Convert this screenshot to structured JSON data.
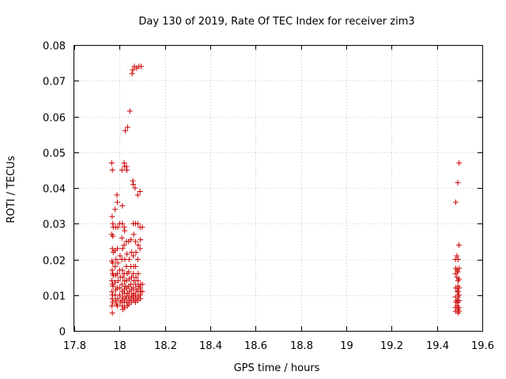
{
  "chart_data": {
    "type": "scatter",
    "title": "Day 130 of 2019, Rate Of TEC Index for receiver zim3",
    "xlabel": "GPS time / hours",
    "ylabel": "ROTI / TECUs",
    "xlim": [
      17.8,
      19.6
    ],
    "ylim": [
      0,
      0.08
    ],
    "xticks": [
      "17.8",
      "18",
      "18.2",
      "18.4",
      "18.6",
      "18.8",
      "19",
      "19.2",
      "19.4",
      "19.6"
    ],
    "yticks": [
      "0",
      "0.01",
      "0.02",
      "0.03",
      "0.04",
      "0.05",
      "0.06",
      "0.07",
      "0.08"
    ],
    "grid": true,
    "marker": "+",
    "series": [
      {
        "name": "ROTI",
        "color": "#cc0000",
        "points": [
          [
            17.965,
            0.047
          ],
          [
            17.968,
            0.045
          ],
          [
            17.967,
            0.032
          ],
          [
            17.97,
            0.03
          ],
          [
            17.972,
            0.029
          ],
          [
            17.965,
            0.027
          ],
          [
            17.97,
            0.0265
          ],
          [
            17.968,
            0.023
          ],
          [
            17.972,
            0.022
          ],
          [
            17.966,
            0.0195
          ],
          [
            17.97,
            0.019
          ],
          [
            17.967,
            0.017
          ],
          [
            17.969,
            0.016
          ],
          [
            17.972,
            0.0155
          ],
          [
            17.966,
            0.014
          ],
          [
            17.968,
            0.013
          ],
          [
            17.971,
            0.0125
          ],
          [
            17.966,
            0.011
          ],
          [
            17.969,
            0.01
          ],
          [
            17.967,
            0.009
          ],
          [
            17.97,
            0.008
          ],
          [
            17.966,
            0.007
          ],
          [
            17.968,
            0.005
          ],
          [
            17.98,
            0.034
          ],
          [
            17.982,
            0.029
          ],
          [
            17.98,
            0.0225
          ],
          [
            17.984,
            0.02
          ],
          [
            17.98,
            0.018
          ],
          [
            17.982,
            0.0155
          ],
          [
            17.98,
            0.0135
          ],
          [
            17.983,
            0.0115
          ],
          [
            17.98,
            0.01
          ],
          [
            17.982,
            0.0085
          ],
          [
            17.986,
            0.0075
          ],
          [
            17.988,
            0.038
          ],
          [
            17.99,
            0.036
          ],
          [
            17.992,
            0.029
          ],
          [
            17.99,
            0.023
          ],
          [
            17.992,
            0.019
          ],
          [
            17.99,
            0.016
          ],
          [
            17.993,
            0.014
          ],
          [
            17.99,
            0.012
          ],
          [
            17.992,
            0.009
          ],
          [
            17.99,
            0.007
          ],
          [
            18.0,
            0.03
          ],
          [
            18.002,
            0.021
          ],
          [
            18.0,
            0.017
          ],
          [
            18.003,
            0.015
          ],
          [
            18.001,
            0.012
          ],
          [
            18.0,
            0.01
          ],
          [
            18.003,
            0.008
          ],
          [
            18.01,
            0.045
          ],
          [
            18.012,
            0.035
          ],
          [
            18.012,
            0.03
          ],
          [
            18.01,
            0.026
          ],
          [
            18.013,
            0.023
          ],
          [
            18.01,
            0.02
          ],
          [
            18.012,
            0.017
          ],
          [
            18.014,
            0.015
          ],
          [
            18.01,
            0.013
          ],
          [
            18.012,
            0.011
          ],
          [
            18.014,
            0.0095
          ],
          [
            18.01,
            0.0085
          ],
          [
            18.012,
            0.007
          ],
          [
            18.014,
            0.006
          ],
          [
            18.02,
            0.047
          ],
          [
            18.022,
            0.046
          ],
          [
            18.02,
            0.029
          ],
          [
            18.022,
            0.028
          ],
          [
            18.02,
            0.024
          ],
          [
            18.023,
            0.02
          ],
          [
            18.02,
            0.016
          ],
          [
            18.022,
            0.014
          ],
          [
            18.024,
            0.0125
          ],
          [
            18.02,
            0.0115
          ],
          [
            18.022,
            0.0105
          ],
          [
            18.024,
            0.009
          ],
          [
            18.02,
            0.008
          ],
          [
            18.022,
            0.0065
          ],
          [
            18.025,
            0.056
          ],
          [
            18.03,
            0.046
          ],
          [
            18.032,
            0.045
          ],
          [
            18.03,
            0.025
          ],
          [
            18.032,
            0.0215
          ],
          [
            18.03,
            0.018
          ],
          [
            18.033,
            0.016
          ],
          [
            18.03,
            0.014
          ],
          [
            18.032,
            0.012
          ],
          [
            18.034,
            0.0105
          ],
          [
            18.03,
            0.0095
          ],
          [
            18.032,
            0.008
          ],
          [
            18.034,
            0.007
          ],
          [
            18.035,
            0.057
          ],
          [
            18.04,
            0.025
          ],
          [
            18.042,
            0.02
          ],
          [
            18.04,
            0.0165
          ],
          [
            18.042,
            0.0145
          ],
          [
            18.04,
            0.0125
          ],
          [
            18.043,
            0.011
          ],
          [
            18.04,
            0.0095
          ],
          [
            18.042,
            0.0085
          ],
          [
            18.041,
            0.0075
          ],
          [
            18.045,
            0.0615
          ],
          [
            18.05,
            0.0255
          ],
          [
            18.052,
            0.022
          ],
          [
            18.05,
            0.018
          ],
          [
            18.053,
            0.015
          ],
          [
            18.05,
            0.013
          ],
          [
            18.052,
            0.0115
          ],
          [
            18.054,
            0.01
          ],
          [
            18.05,
            0.009
          ],
          [
            18.052,
            0.008
          ],
          [
            18.055,
            0.072
          ],
          [
            18.058,
            0.073
          ],
          [
            18.058,
            0.042
          ],
          [
            18.06,
            0.041
          ],
          [
            18.06,
            0.03
          ],
          [
            18.062,
            0.027
          ],
          [
            18.06,
            0.021
          ],
          [
            18.062,
            0.018
          ],
          [
            18.06,
            0.016
          ],
          [
            18.063,
            0.014
          ],
          [
            18.06,
            0.012
          ],
          [
            18.062,
            0.0105
          ],
          [
            18.06,
            0.0095
          ],
          [
            18.063,
            0.0085
          ],
          [
            18.065,
            0.074
          ],
          [
            18.068,
            0.04
          ],
          [
            18.07,
            0.03
          ],
          [
            18.07,
            0.025
          ],
          [
            18.072,
            0.022
          ],
          [
            18.07,
            0.018
          ],
          [
            18.072,
            0.015
          ],
          [
            18.07,
            0.013
          ],
          [
            18.073,
            0.0115
          ],
          [
            18.07,
            0.01
          ],
          [
            18.072,
            0.009
          ],
          [
            18.07,
            0.008
          ],
          [
            18.075,
            0.0735
          ],
          [
            18.08,
            0.038
          ],
          [
            18.08,
            0.03
          ],
          [
            18.082,
            0.024
          ],
          [
            18.08,
            0.02
          ],
          [
            18.082,
            0.016
          ],
          [
            18.08,
            0.014
          ],
          [
            18.083,
            0.0125
          ],
          [
            18.08,
            0.011
          ],
          [
            18.082,
            0.0095
          ],
          [
            18.08,
            0.0085
          ],
          [
            18.085,
            0.074
          ],
          [
            18.09,
            0.039
          ],
          [
            18.09,
            0.029
          ],
          [
            18.092,
            0.0255
          ],
          [
            18.09,
            0.023
          ],
          [
            18.092,
            0.013
          ],
          [
            18.09,
            0.012
          ],
          [
            18.093,
            0.011
          ],
          [
            18.09,
            0.01
          ],
          [
            18.092,
            0.009
          ],
          [
            18.095,
            0.074
          ],
          [
            18.1,
            0.029
          ],
          [
            18.1,
            0.013
          ],
          [
            18.1,
            0.011
          ],
          [
            19.483,
            0.036
          ],
          [
            19.482,
            0.02
          ],
          [
            19.483,
            0.0175
          ],
          [
            19.482,
            0.016
          ],
          [
            19.483,
            0.012
          ],
          [
            19.482,
            0.0095
          ],
          [
            19.483,
            0.008
          ],
          [
            19.482,
            0.0065
          ],
          [
            19.483,
            0.0055
          ],
          [
            19.488,
            0.021
          ],
          [
            19.489,
            0.017
          ],
          [
            19.488,
            0.015
          ],
          [
            19.489,
            0.011
          ],
          [
            19.488,
            0.0085
          ],
          [
            19.489,
            0.007
          ],
          [
            19.492,
            0.0415
          ],
          [
            19.493,
            0.02
          ],
          [
            19.492,
            0.0165
          ],
          [
            19.493,
            0.014
          ],
          [
            19.492,
            0.0125
          ],
          [
            19.493,
            0.011
          ],
          [
            19.492,
            0.0095
          ],
          [
            19.493,
            0.008
          ],
          [
            19.492,
            0.006
          ],
          [
            19.493,
            0.005
          ],
          [
            19.498,
            0.047
          ],
          [
            19.497,
            0.024
          ],
          [
            19.498,
            0.0175
          ],
          [
            19.497,
            0.0145
          ],
          [
            19.498,
            0.012
          ],
          [
            19.497,
            0.01
          ],
          [
            19.498,
            0.0085
          ],
          [
            19.497,
            0.0065
          ],
          [
            19.498,
            0.0055
          ]
        ]
      }
    ]
  }
}
